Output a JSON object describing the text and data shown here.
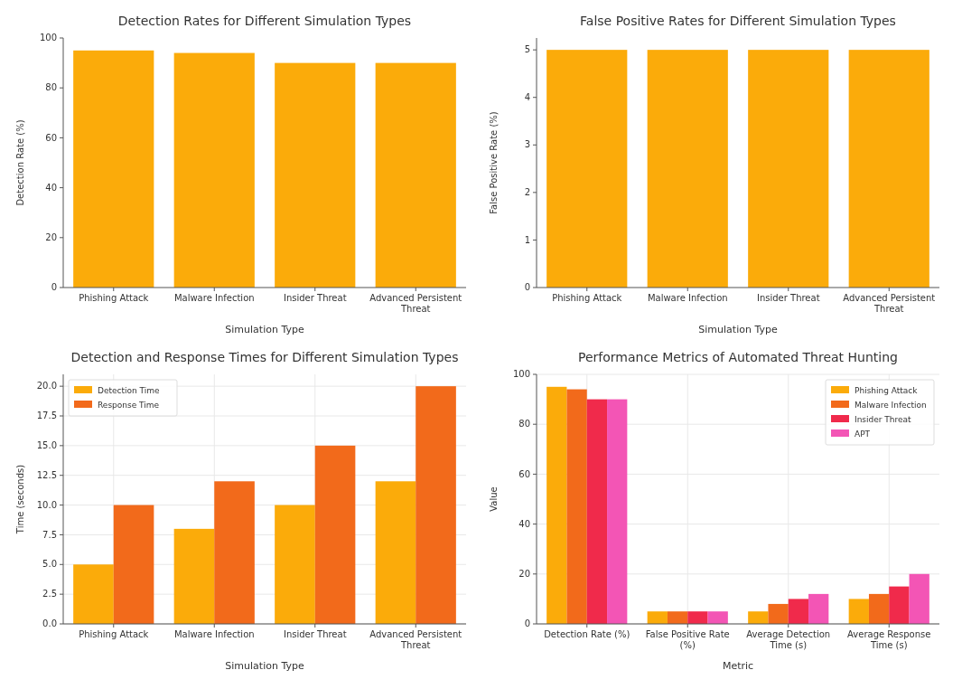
{
  "chart_data": [
    {
      "type": "bar",
      "title": "Detection Rates for Different Simulation Types",
      "xlabel": "Simulation Type",
      "ylabel": "Detection Rate (%)",
      "categories": [
        "Phishing Attack",
        "Malware Infection",
        "Insider Threat",
        "Advanced Persistent Threat"
      ],
      "values": [
        95,
        94,
        90,
        90
      ],
      "color": "#fbab0a",
      "ylim": [
        0,
        100
      ],
      "yticks": [
        0,
        20,
        40,
        60,
        80,
        100
      ],
      "grid": false,
      "legend": false
    },
    {
      "type": "bar",
      "title": "False Positive Rates for Different Simulation Types",
      "xlabel": "Simulation Type",
      "ylabel": "False Positive Rate (%)",
      "categories": [
        "Phishing Attack",
        "Malware Infection",
        "Insider Threat",
        "Advanced Persistent Threat"
      ],
      "values": [
        5,
        5,
        5,
        5
      ],
      "color": "#fbab0a",
      "ylim": [
        0,
        5.25
      ],
      "yticks": [
        0,
        1,
        2,
        3,
        4,
        5
      ],
      "grid": false,
      "legend": false
    },
    {
      "type": "bar",
      "title": "Detection and Response Times for Different Simulation Types",
      "xlabel": "Simulation Type",
      "ylabel": "Time (seconds)",
      "categories": [
        "Phishing Attack",
        "Malware Infection",
        "Insider Threat",
        "Advanced Persistent Threat"
      ],
      "series": [
        {
          "name": "Detection Time",
          "color": "#fbab0a",
          "values": [
            5,
            8,
            10,
            12
          ]
        },
        {
          "name": "Response Time",
          "color": "#f26a1b",
          "values": [
            10,
            12,
            15,
            20
          ]
        }
      ],
      "ylim": [
        0,
        21
      ],
      "yticks": [
        {
          "value": 0,
          "label": "0.0"
        },
        {
          "value": 2.5,
          "label": "2.5"
        },
        {
          "value": 5,
          "label": "5.0"
        },
        {
          "value": 7.5,
          "label": "7.5"
        },
        {
          "value": 10,
          "label": "10.0"
        },
        {
          "value": 12.5,
          "label": "12.5"
        },
        {
          "value": 15,
          "label": "15.0"
        },
        {
          "value": 17.5,
          "label": "17.5"
        },
        {
          "value": 20,
          "label": "20.0"
        }
      ],
      "grid": true,
      "legend": "top left"
    },
    {
      "type": "bar",
      "title": "Performance Metrics of Automated Threat Hunting",
      "xlabel": "Metric",
      "ylabel": "Value",
      "categories": [
        "Detection Rate (%)",
        "False Positive Rate (%)",
        "Average Detection Time (s)",
        "Average Response Time (s)"
      ],
      "series": [
        {
          "name": "Phishing Attack",
          "color": "#fbab0a",
          "values": [
            95,
            5,
            5,
            10
          ]
        },
        {
          "name": "Malware Infection",
          "color": "#f26a1b",
          "values": [
            94,
            5,
            8,
            12
          ]
        },
        {
          "name": "Insider Threat",
          "color": "#f02a4b",
          "values": [
            90,
            5,
            10,
            15
          ]
        },
        {
          "name": "APT",
          "color": "#f355b5",
          "values": [
            90,
            5,
            12,
            20
          ]
        }
      ],
      "ylim": [
        0,
        100
      ],
      "yticks": [
        0,
        20,
        40,
        60,
        80,
        100
      ],
      "grid": true,
      "legend": "top right"
    }
  ]
}
